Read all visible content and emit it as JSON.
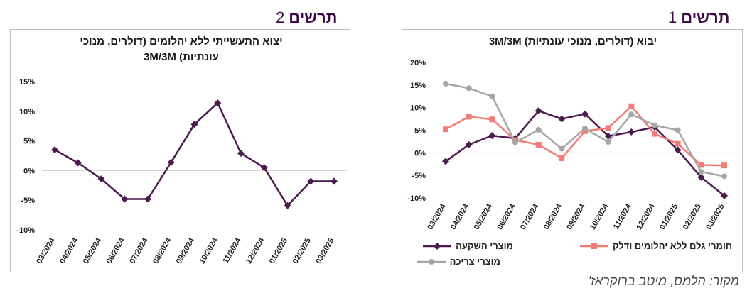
{
  "figures": [
    {
      "heading": "תרשים",
      "number": "2",
      "chart_data": {
        "type": "line",
        "title_lines": [
          "יצוא התעשייתי ללא יהלומים (דולרים, מנוכי",
          "עונתיות) 3M/3M"
        ],
        "categories": [
          "03/2024",
          "04/2024",
          "05/2024",
          "06/2024",
          "07/2024",
          "08/2024",
          "09/2024",
          "10/2024",
          "11/2024",
          "12/2024",
          "01/2025",
          "02/2025",
          "03/2025"
        ],
        "ylim": [
          -10,
          15
        ],
        "yticks": [
          -10,
          -5,
          0,
          5,
          10,
          15
        ],
        "ytick_labels": [
          "-10%",
          "-5%",
          "0%",
          "5%",
          "10%",
          "15%"
        ],
        "grid": false,
        "series": [
          {
            "values": [
              3.5,
              1.3,
              -1.4,
              -4.8,
              -4.8,
              1.4,
              7.8,
              11.4,
              2.9,
              0.5,
              -5.9,
              -1.8,
              -1.8
            ],
            "color": "#4b1a4f",
            "marker": "diamond"
          }
        ]
      }
    },
    {
      "heading": "תרשים",
      "number": "1",
      "chart_data": {
        "type": "line",
        "title_lines": [
          "יבוא (דולרים, מנוכי עונתיות) 3M/3M"
        ],
        "categories": [
          "03/2024",
          "04/2024",
          "05/2024",
          "06/2024",
          "07/2024",
          "08/2024",
          "09/2024",
          "10/2024",
          "11/2024",
          "12/2024",
          "01/2025",
          "02/2025",
          "03/2025"
        ],
        "ylim": [
          -10,
          20
        ],
        "yticks": [
          -10,
          -5,
          0,
          5,
          10,
          15,
          20
        ],
        "ytick_labels": [
          "-10%",
          "-5%",
          "0%",
          "5%",
          "10%",
          "15%",
          "20%"
        ],
        "grid": false,
        "legend": "bottom",
        "series": [
          {
            "name": "מוצרי השקעה",
            "values": [
              -1.9,
              1.8,
              3.8,
              3.2,
              9.3,
              7.5,
              8.6,
              3.7,
              4.6,
              5.7,
              0.6,
              -5.4,
              -9.5
            ],
            "color": "#4b1a4f",
            "marker": "diamond"
          },
          {
            "name": "חומרי גלם ללא יהלומים ודלק",
            "values": [
              5.2,
              8.0,
              7.4,
              2.8,
              1.8,
              -1.2,
              4.8,
              5.5,
              10.3,
              4.2,
              2.0,
              -2.7,
              -2.8
            ],
            "color": "#f47c78",
            "marker": "square"
          },
          {
            "name": "מוצרי צריכה",
            "values": [
              15.3,
              14.3,
              12.5,
              2.3,
              5.1,
              0.9,
              5.4,
              2.4,
              8.5,
              6.1,
              5.0,
              -4.2,
              -5.2
            ],
            "color": "#a6a6a6",
            "marker": "circle"
          }
        ]
      }
    }
  ],
  "source": "מקור: הלמס, מיטב ברוקראז'"
}
